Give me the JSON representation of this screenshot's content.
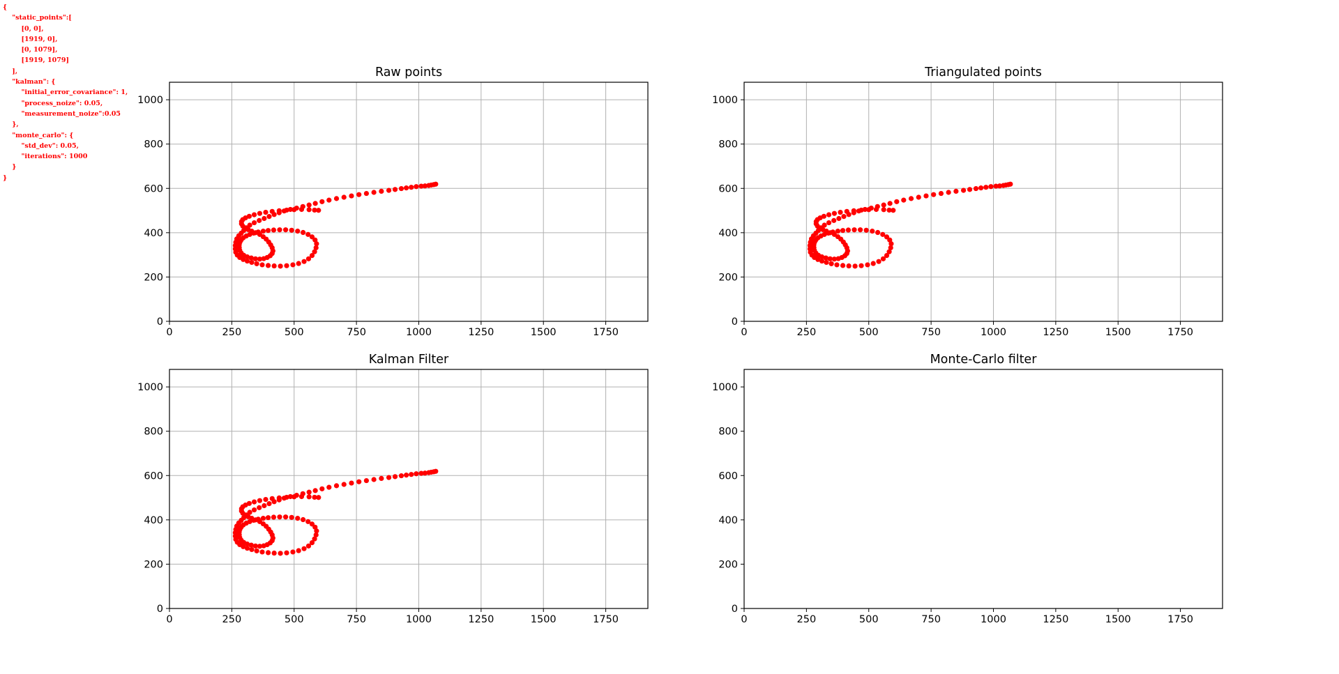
{
  "config_overlay": {
    "text_color": "#ff0000",
    "lines": [
      "{",
      "    \"static_points\":[",
      "        [0, 0],",
      "        [1919, 0],",
      "        [0, 1079],",
      "        [1919, 1079]",
      "    ],",
      "    \"kalman\": {",
      "        \"initial_error_covariance\": 1,",
      "        \"process_noize\": 0.05,",
      "        \"measurement_noize\":0.05",
      "    },",
      "    \"monte_carlo\": {",
      "        \"std_dev\": 0.05,",
      "        \"iterations\": 1000",
      "    }",
      "}"
    ]
  },
  "chart_data": [
    {
      "type": "scatter",
      "title": "Raw points",
      "xlim": [
        0,
        1919
      ],
      "ylim": [
        0,
        1079
      ],
      "xticks": [
        0,
        250,
        500,
        750,
        1000,
        1250,
        1500,
        1750
      ],
      "yticks": [
        0,
        200,
        400,
        600,
        800,
        1000
      ],
      "grid": true,
      "color": "#ff0000",
      "points": "trajectory"
    },
    {
      "type": "scatter",
      "title": "Triangulated points",
      "xlim": [
        0,
        1919
      ],
      "ylim": [
        0,
        1079
      ],
      "xticks": [
        0,
        250,
        500,
        750,
        1000,
        1250,
        1500,
        1750
      ],
      "yticks": [
        0,
        200,
        400,
        600,
        800,
        1000
      ],
      "grid": true,
      "color": "#ff0000",
      "points": "trajectory"
    },
    {
      "type": "scatter",
      "title": "Kalman Filter",
      "xlim": [
        0,
        1919
      ],
      "ylim": [
        0,
        1079
      ],
      "xticks": [
        0,
        250,
        500,
        750,
        1000,
        1250,
        1500,
        1750
      ],
      "yticks": [
        0,
        200,
        400,
        600,
        800,
        1000
      ],
      "grid": true,
      "color": "#ff0000",
      "points": "trajectory"
    },
    {
      "type": "scatter",
      "title": "Monte-Carlo filter",
      "xlim": [
        0,
        1919
      ],
      "ylim": [
        0,
        1079
      ],
      "xticks": [
        0,
        250,
        500,
        750,
        1000,
        1250,
        1500,
        1750
      ],
      "yticks": [
        0,
        200,
        400,
        600,
        800,
        1000
      ],
      "grid": false,
      "color": "#ff0000",
      "points": "none"
    }
  ],
  "trajectory": [
    [
      1068,
      619
    ],
    [
      1060,
      617
    ],
    [
      1050,
      615
    ],
    [
      1040,
      613
    ],
    [
      1025,
      611
    ],
    [
      1010,
      610
    ],
    [
      990,
      608
    ],
    [
      970,
      605
    ],
    [
      950,
      602
    ],
    [
      930,
      599
    ],
    [
      905,
      595
    ],
    [
      880,
      591
    ],
    [
      850,
      587
    ],
    [
      820,
      582
    ],
    [
      790,
      577
    ],
    [
      760,
      572
    ],
    [
      730,
      566
    ],
    [
      700,
      560
    ],
    [
      670,
      554
    ],
    [
      640,
      547
    ],
    [
      612,
      540
    ],
    [
      585,
      532
    ],
    [
      560,
      525
    ],
    [
      535,
      518
    ],
    [
      510,
      511
    ],
    [
      485,
      505
    ],
    [
      460,
      498
    ],
    [
      440,
      490
    ],
    [
      420,
      482
    ],
    [
      400,
      473
    ],
    [
      380,
      464
    ],
    [
      360,
      455
    ],
    [
      340,
      445
    ],
    [
      322,
      434
    ],
    [
      308,
      422
    ],
    [
      298,
      410
    ],
    [
      288,
      398
    ],
    [
      278,
      386
    ],
    [
      270,
      372
    ],
    [
      266,
      357
    ],
    [
      264,
      342
    ],
    [
      264,
      327
    ],
    [
      266,
      312
    ],
    [
      272,
      299
    ],
    [
      282,
      288
    ],
    [
      296,
      279
    ],
    [
      312,
      272
    ],
    [
      330,
      266
    ],
    [
      350,
      260
    ],
    [
      372,
      255
    ],
    [
      396,
      252
    ],
    [
      420,
      250
    ],
    [
      445,
      249
    ],
    [
      470,
      251
    ],
    [
      495,
      255
    ],
    [
      518,
      261
    ],
    [
      540,
      270
    ],
    [
      558,
      282
    ],
    [
      572,
      297
    ],
    [
      582,
      314
    ],
    [
      588,
      332
    ],
    [
      590,
      350
    ],
    [
      584,
      367
    ],
    [
      572,
      381
    ],
    [
      556,
      392
    ],
    [
      536,
      401
    ],
    [
      514,
      407
    ],
    [
      490,
      411
    ],
    [
      466,
      413
    ],
    [
      442,
      413
    ],
    [
      418,
      412
    ],
    [
      396,
      410
    ],
    [
      376,
      407
    ],
    [
      356,
      403
    ],
    [
      338,
      398
    ],
    [
      322,
      392
    ],
    [
      308,
      385
    ],
    [
      296,
      377
    ],
    [
      288,
      368
    ],
    [
      283,
      358
    ],
    [
      280,
      346
    ],
    [
      280,
      333
    ],
    [
      282,
      320
    ],
    [
      288,
      308
    ],
    [
      298,
      298
    ],
    [
      312,
      291
    ],
    [
      328,
      286
    ],
    [
      345,
      282
    ],
    [
      362,
      281
    ],
    [
      378,
      283
    ],
    [
      392,
      288
    ],
    [
      404,
      296
    ],
    [
      412,
      306
    ],
    [
      415,
      318
    ],
    [
      412,
      332
    ],
    [
      406,
      345
    ],
    [
      398,
      358
    ],
    [
      388,
      371
    ],
    [
      376,
      382
    ],
    [
      362,
      392
    ],
    [
      346,
      400
    ],
    [
      330,
      407
    ],
    [
      316,
      414
    ],
    [
      303,
      421
    ],
    [
      294,
      430
    ],
    [
      289,
      440
    ],
    [
      289,
      450
    ],
    [
      294,
      459
    ],
    [
      305,
      467
    ],
    [
      320,
      474
    ],
    [
      340,
      481
    ],
    [
      362,
      487
    ],
    [
      386,
      492
    ],
    [
      412,
      496
    ],
    [
      440,
      499
    ],
    [
      470,
      502
    ],
    [
      500,
      504
    ],
    [
      530,
      505
    ],
    [
      560,
      504
    ],
    [
      582,
      502
    ],
    [
      598,
      501
    ]
  ]
}
